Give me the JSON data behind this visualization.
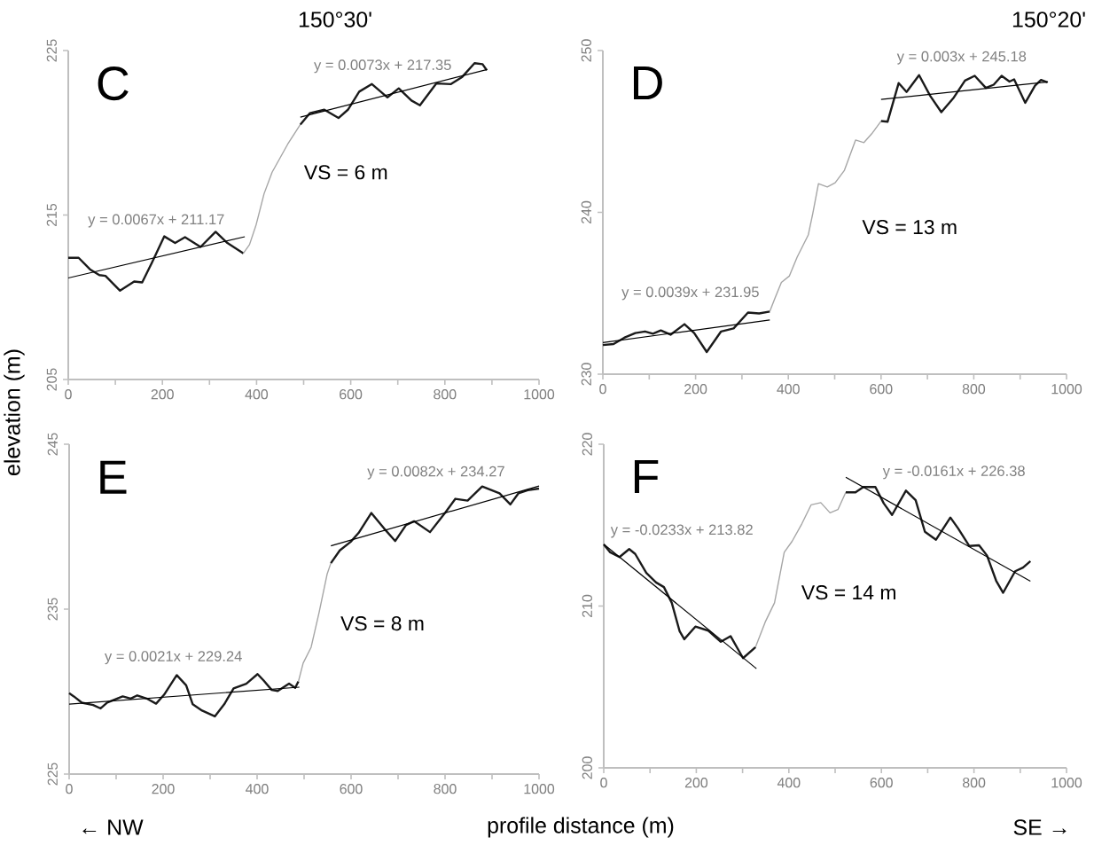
{
  "chart_data": [
    {
      "type": "line",
      "title": "C",
      "ylabel": "elevation (m)",
      "xlim": [
        0,
        1000
      ],
      "ylim": [
        205,
        225
      ],
      "xticks": [
        0,
        {
          "value": 100,
          "label": null
        },
        200,
        {
          "value": 300,
          "label": null
        },
        400,
        {
          "value": 500,
          "label": null
        },
        600,
        {
          "value": 700,
          "label": null
        },
        800,
        {
          "value": 900,
          "label": null
        },
        1000
      ],
      "yticks": [
        205,
        215,
        225
      ],
      "series": [
        {
          "color": "#1a1a1a",
          "x": [
            0,
            22,
            46,
            66,
            79,
            110,
            140,
            157,
            177,
            204,
            227,
            248,
            281,
            313,
            338,
            372
          ],
          "values": [
            212.4,
            212.4,
            211.7,
            211.35,
            211.3,
            210.4,
            210.96,
            210.9,
            212.06,
            213.7,
            213.3,
            213.65,
            213.06,
            213.98,
            213.3,
            212.67
          ]
        },
        {
          "color": "#a6a6a6",
          "x": [
            372,
            385,
            399,
            416,
            433,
            466,
            493
          ],
          "values": [
            212.67,
            213.2,
            214.4,
            216.3,
            217.6,
            219.3,
            220.5
          ]
        },
        {
          "color": "#1a1a1a",
          "x": [
            493,
            513,
            544,
            574,
            594,
            618,
            645,
            678,
            702,
            729,
            747,
            782,
            813,
            837,
            863,
            880,
            889
          ],
          "values": [
            220.5,
            221.19,
            221.4,
            220.9,
            221.4,
            222.5,
            222.96,
            222.15,
            222.7,
            221.96,
            221.67,
            223.0,
            222.96,
            223.4,
            224.23,
            224.17,
            223.8
          ]
        },
        {
          "color": "#000000",
          "x": [
            0,
            375
          ],
          "values": [
            211.17,
            213.68
          ]
        },
        {
          "color": "#000000",
          "x": [
            493,
            890
          ],
          "values": [
            220.95,
            223.85
          ]
        }
      ],
      "annotations": [
        "y = 0.0067x + 211.17",
        "y = 0.0073x + 217.35",
        "VS = 6 m",
        "150°30'"
      ]
    },
    {
      "type": "line",
      "title": "D",
      "xlim": [
        0,
        1000
      ],
      "ylim": [
        230,
        250
      ],
      "xticks": [
        0,
        {
          "value": 100,
          "label": null
        },
        200,
        {
          "value": 300,
          "label": null
        },
        400,
        {
          "value": 500,
          "label": null
        },
        600,
        {
          "value": 700,
          "label": null
        },
        800,
        {
          "value": 900,
          "label": null
        },
        1000
      ],
      "yticks": [
        230,
        240,
        250
      ],
      "series": [
        {
          "color": "#1a1a1a",
          "x": [
            0,
            23,
            46,
            70,
            91,
            108,
            125,
            146,
            176,
            197,
            224,
            255,
            282,
            313,
            337,
            360
          ],
          "values": [
            231.8,
            231.86,
            232.25,
            232.54,
            232.64,
            232.5,
            232.7,
            232.44,
            233.09,
            232.54,
            231.37,
            232.64,
            232.83,
            233.81,
            233.75,
            233.87
          ]
        },
        {
          "color": "#a6a6a6",
          "x": [
            360,
            371,
            385,
            402,
            419,
            443,
            453,
            465,
            484,
            501,
            521,
            545,
            563,
            580,
            600
          ],
          "values": [
            233.87,
            234.69,
            235.67,
            236.06,
            237.23,
            238.6,
            239.97,
            241.77,
            241.57,
            241.83,
            242.6,
            244.47,
            244.31,
            244.86,
            245.64
          ]
        },
        {
          "color": "#1a1a1a",
          "x": [
            600,
            614,
            638,
            655,
            682,
            706,
            730,
            757,
            781,
            802,
            826,
            843,
            860,
            877,
            887,
            911,
            932,
            945,
            959
          ],
          "values": [
            245.64,
            245.6,
            247.99,
            247.44,
            248.48,
            247.2,
            246.19,
            247.1,
            248.14,
            248.44,
            247.69,
            247.89,
            248.44,
            248.08,
            248.22,
            246.77,
            247.83,
            248.18,
            248.04
          ]
        },
        {
          "color": "#000000",
          "x": [
            0,
            360
          ],
          "values": [
            231.95,
            233.35
          ]
        },
        {
          "color": "#000000",
          "x": [
            600,
            960
          ],
          "values": [
            246.98,
            248.06
          ]
        }
      ],
      "annotations": [
        "y = 0.0039x + 231.95",
        "y = 0.003x + 245.18",
        "VS = 13 m",
        "150°20'"
      ]
    },
    {
      "type": "line",
      "title": "E",
      "xlabel": "profile distance (m)",
      "xlim": [
        0,
        1000
      ],
      "ylim": [
        225,
        245
      ],
      "xticks": [
        0,
        {
          "value": 100,
          "label": null
        },
        200,
        {
          "value": 300,
          "label": null
        },
        400,
        {
          "value": 500,
          "label": null
        },
        600,
        {
          "value": 700,
          "label": null
        },
        800,
        {
          "value": 900,
          "label": null
        },
        1000
      ],
      "yticks": [
        225,
        235,
        245
      ],
      "series": [
        {
          "color": "#1a1a1a",
          "x": [
            0,
            10,
            27,
            51,
            67,
            81,
            114,
            131,
            145,
            165,
            185,
            202,
            229,
            249,
            263,
            283,
            310,
            330,
            350,
            377,
            401,
            414,
            431,
            444,
            468,
            481,
            488
          ],
          "values": [
            229.9,
            229.71,
            229.33,
            229.19,
            228.98,
            229.33,
            229.71,
            229.58,
            229.77,
            229.58,
            229.27,
            229.81,
            231.0,
            230.38,
            229.23,
            228.85,
            228.5,
            229.23,
            230.19,
            230.48,
            231.06,
            230.67,
            230.1,
            230.04,
            230.48,
            230.23,
            230.62
          ]
        },
        {
          "color": "#a6a6a6",
          "x": [
            488,
            498,
            515,
            532,
            549,
            557
          ],
          "values": [
            230.62,
            231.73,
            232.69,
            234.81,
            237.12,
            237.79
          ]
        },
        {
          "color": "#1a1a1a",
          "x": [
            557,
            576,
            599,
            616,
            643,
            670,
            694,
            717,
            734,
            768,
            801,
            822,
            848,
            879,
            916,
            939,
            956,
            976,
            1000
          ],
          "values": [
            237.79,
            238.56,
            239.08,
            239.62,
            240.83,
            239.9,
            239.13,
            240.1,
            240.33,
            239.67,
            240.87,
            241.69,
            241.58,
            242.44,
            242.02,
            241.35,
            242.02,
            242.21,
            242.31
          ]
        },
        {
          "color": "#000000",
          "x": [
            0,
            490
          ],
          "values": [
            229.24,
            230.27
          ]
        },
        {
          "color": "#000000",
          "x": [
            557,
            1000
          ],
          "values": [
            238.84,
            242.47
          ]
        }
      ],
      "annotations": [
        "y = 0.0021x + 229.24",
        "y = 0.0082x + 234.27",
        "VS = 8 m",
        "← NW"
      ]
    },
    {
      "type": "line",
      "title": "F",
      "xlim": [
        0,
        1000
      ],
      "ylim": [
        200,
        220
      ],
      "xticks": [
        0,
        {
          "value": 100,
          "label": null
        },
        200,
        {
          "value": 300,
          "label": null
        },
        400,
        {
          "value": 500,
          "label": null
        },
        600,
        {
          "value": 700,
          "label": null
        },
        800,
        {
          "value": 900,
          "label": null
        },
        1000
      ],
      "yticks": [
        200,
        210,
        220
      ],
      "series": [
        {
          "color": "#1a1a1a",
          "x": [
            0,
            14,
            34,
            55,
            68,
            92,
            113,
            130,
            147,
            164,
            174,
            198,
            226,
            253,
            274,
            301,
            328
          ],
          "values": [
            213.81,
            213.32,
            213.03,
            213.52,
            213.22,
            212.05,
            211.46,
            211.17,
            210.2,
            208.44,
            207.95,
            208.73,
            208.48,
            207.79,
            208.14,
            206.78,
            207.46
          ]
        },
        {
          "color": "#a6a6a6",
          "x": [
            328,
            349,
            369,
            390,
            407,
            428,
            448,
            469,
            489,
            506,
            523
          ],
          "values": [
            207.46,
            209.02,
            210.2,
            213.32,
            214.0,
            215.08,
            216.25,
            216.39,
            215.76,
            215.96,
            217.03
          ]
        },
        {
          "color": "#1a1a1a",
          "x": [
            523,
            544,
            561,
            587,
            605,
            623,
            653,
            674,
            694,
            718,
            749,
            766,
            790,
            811,
            828,
            848,
            863,
            889,
            906,
            922
          ],
          "values": [
            217.03,
            217.03,
            217.36,
            217.36,
            216.35,
            215.63,
            217.13,
            216.54,
            214.59,
            214.1,
            215.47,
            214.79,
            213.71,
            213.75,
            213.13,
            211.56,
            210.82,
            212.15,
            212.38,
            212.77
          ]
        },
        {
          "color": "#000000",
          "x": [
            0,
            330
          ],
          "values": [
            213.82,
            206.13
          ]
        },
        {
          "color": "#000000",
          "x": [
            523,
            922
          ],
          "values": [
            217.96,
            211.54
          ]
        }
      ],
      "annotations": [
        "y = -0.0233x + 213.82",
        "y = -0.0161x + 226.38",
        "VS = 14 m",
        "SE →"
      ]
    }
  ]
}
